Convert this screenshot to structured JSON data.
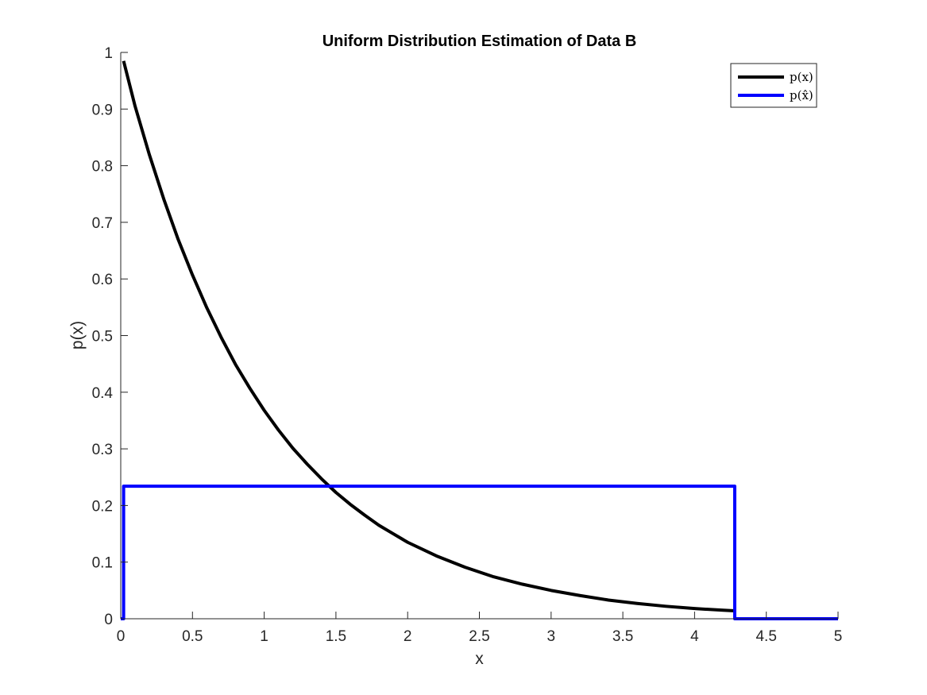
{
  "chart_data": {
    "type": "line",
    "title": "Uniform Distribution Estimation of Data B",
    "xlabel": "x",
    "ylabel": "p(x)",
    "xlim": [
      0,
      5
    ],
    "ylim": [
      0,
      1
    ],
    "xticks": [
      "0",
      "0.5",
      "1",
      "1.5",
      "2",
      "2.5",
      "3",
      "3.5",
      "4",
      "4.5",
      "5"
    ],
    "yticks": [
      "0",
      "0.1",
      "0.2",
      "0.3",
      "0.4",
      "0.5",
      "0.6",
      "0.7",
      "0.8",
      "0.9",
      "1"
    ],
    "grid": false,
    "legend_position": "top-right",
    "series": [
      {
        "name": "p(x)",
        "color": "#000000",
        "x": [
          0.02,
          0.1,
          0.2,
          0.3,
          0.4,
          0.5,
          0.6,
          0.7,
          0.8,
          0.9,
          1.0,
          1.1,
          1.2,
          1.3,
          1.4,
          1.5,
          1.6,
          1.7,
          1.8,
          1.9,
          2.0,
          2.2,
          2.4,
          2.6,
          2.8,
          3.0,
          3.2,
          3.4,
          3.6,
          3.8,
          4.0,
          4.2,
          4.28
        ],
        "y": [
          0.985,
          0.905,
          0.819,
          0.741,
          0.67,
          0.607,
          0.549,
          0.497,
          0.449,
          0.407,
          0.368,
          0.333,
          0.301,
          0.273,
          0.247,
          0.223,
          0.202,
          0.183,
          0.165,
          0.15,
          0.135,
          0.111,
          0.091,
          0.074,
          0.061,
          0.05,
          0.041,
          0.033,
          0.027,
          0.022,
          0.018,
          0.015,
          0.014
        ]
      },
      {
        "name": "p(x̂)",
        "color": "#0000ff",
        "x": [
          0.0,
          0.02,
          0.02,
          4.28,
          4.28,
          5.0
        ],
        "y": [
          0.0,
          0.0,
          0.234,
          0.234,
          0.0,
          0.0
        ]
      }
    ]
  }
}
